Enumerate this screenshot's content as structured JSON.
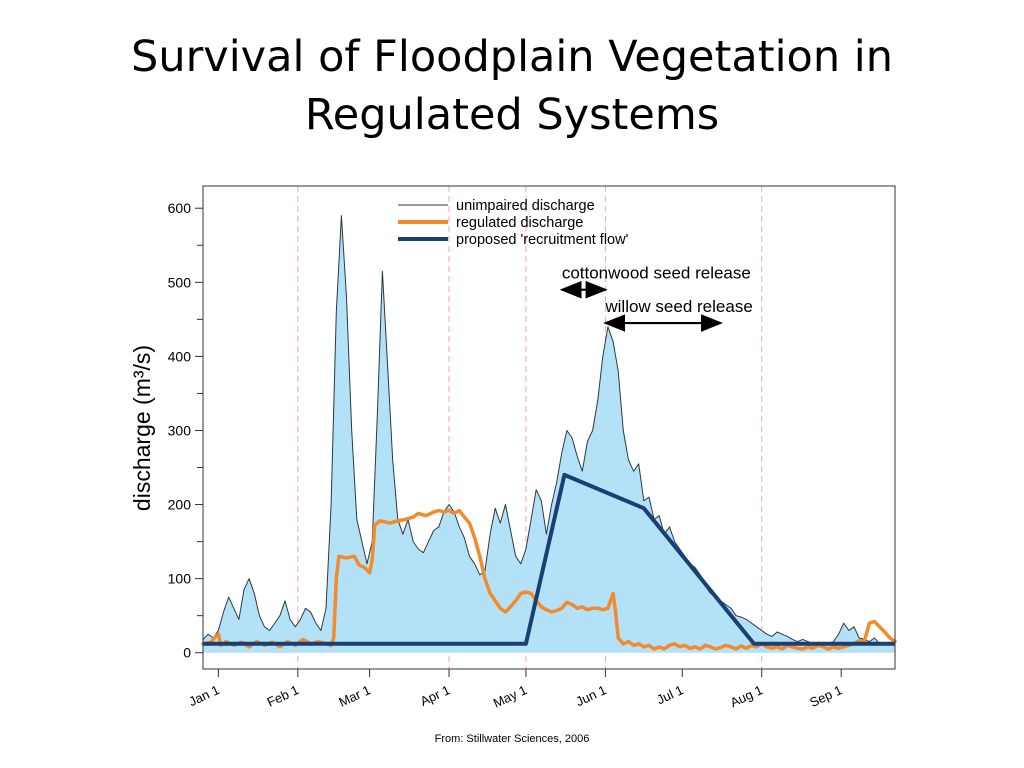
{
  "slide": {
    "title_line1": "Survival of Floodplain Vegetation in",
    "title_line2": "Regulated Systems",
    "source": "From: Stillwater Sciences, 2006"
  },
  "colors": {
    "unimpaired_fill": "#b3e1f7",
    "unimpaired_line": "#2b3a40",
    "regulated": "#f28a2e",
    "recruitment": "#1b3f73",
    "month_divider": "#f4a6b6"
  },
  "chart_data": {
    "type": "area",
    "title": "",
    "xlabel": "",
    "ylabel": "discharge (m³/s)",
    "x_unit": "day of year",
    "xlim": [
      -6,
      264
    ],
    "ylim": [
      -22,
      630
    ],
    "y_ticks": [
      0,
      100,
      200,
      300,
      400,
      500,
      600
    ],
    "y_minor_ticks": [
      50,
      150,
      250,
      350,
      450,
      550
    ],
    "month_ticks": [
      {
        "label": "Jan 1",
        "x": 0
      },
      {
        "label": "Feb 1",
        "x": 31
      },
      {
        "label": "Mar 1",
        "x": 59
      },
      {
        "label": "Apr 1",
        "x": 90
      },
      {
        "label": "May 1",
        "x": 120
      },
      {
        "label": "Jun 1",
        "x": 151
      },
      {
        "label": "Jul 1",
        "x": 181
      },
      {
        "label": "Aug 1",
        "x": 212
      },
      {
        "label": "Sep 1",
        "x": 243
      }
    ],
    "month_dividers": [
      31,
      90,
      120,
      151,
      212
    ],
    "legend": {
      "position": "top-center",
      "entries": [
        "unimpaired discharge",
        "regulated discharge",
        "proposed 'recruitment flow'"
      ]
    },
    "series": [
      {
        "name": "unimpaired discharge",
        "style": "filled-area",
        "points": [
          [
            -6,
            18
          ],
          [
            -4,
            25
          ],
          [
            -2,
            20
          ],
          [
            0,
            30
          ],
          [
            2,
            55
          ],
          [
            4,
            75
          ],
          [
            6,
            60
          ],
          [
            8,
            45
          ],
          [
            10,
            85
          ],
          [
            12,
            100
          ],
          [
            14,
            80
          ],
          [
            16,
            50
          ],
          [
            18,
            35
          ],
          [
            20,
            30
          ],
          [
            22,
            40
          ],
          [
            24,
            50
          ],
          [
            26,
            70
          ],
          [
            28,
            45
          ],
          [
            30,
            35
          ],
          [
            32,
            45
          ],
          [
            34,
            60
          ],
          [
            36,
            55
          ],
          [
            38,
            40
          ],
          [
            40,
            30
          ],
          [
            42,
            60
          ],
          [
            44,
            200
          ],
          [
            46,
            460
          ],
          [
            48,
            590
          ],
          [
            50,
            480
          ],
          [
            52,
            300
          ],
          [
            54,
            180
          ],
          [
            56,
            150
          ],
          [
            58,
            120
          ],
          [
            60,
            150
          ],
          [
            62,
            320
          ],
          [
            64,
            515
          ],
          [
            66,
            390
          ],
          [
            68,
            260
          ],
          [
            70,
            180
          ],
          [
            72,
            160
          ],
          [
            74,
            180
          ],
          [
            76,
            150
          ],
          [
            78,
            140
          ],
          [
            80,
            135
          ],
          [
            82,
            150
          ],
          [
            84,
            165
          ],
          [
            86,
            170
          ],
          [
            88,
            190
          ],
          [
            90,
            200
          ],
          [
            92,
            190
          ],
          [
            94,
            170
          ],
          [
            96,
            155
          ],
          [
            98,
            130
          ],
          [
            100,
            120
          ],
          [
            102,
            105
          ],
          [
            104,
            110
          ],
          [
            106,
            160
          ],
          [
            108,
            195
          ],
          [
            110,
            175
          ],
          [
            112,
            200
          ],
          [
            114,
            165
          ],
          [
            116,
            130
          ],
          [
            118,
            120
          ],
          [
            120,
            140
          ],
          [
            122,
            180
          ],
          [
            124,
            220
          ],
          [
            126,
            205
          ],
          [
            128,
            160
          ],
          [
            130,
            200
          ],
          [
            132,
            230
          ],
          [
            134,
            270
          ],
          [
            136,
            300
          ],
          [
            138,
            290
          ],
          [
            140,
            265
          ],
          [
            142,
            245
          ],
          [
            144,
            285
          ],
          [
            146,
            300
          ],
          [
            148,
            340
          ],
          [
            150,
            400
          ],
          [
            152,
            440
          ],
          [
            154,
            420
          ],
          [
            156,
            380
          ],
          [
            158,
            300
          ],
          [
            160,
            260
          ],
          [
            162,
            245
          ],
          [
            164,
            255
          ],
          [
            166,
            205
          ],
          [
            168,
            210
          ],
          [
            170,
            180
          ],
          [
            172,
            185
          ],
          [
            174,
            160
          ],
          [
            176,
            170
          ],
          [
            178,
            150
          ],
          [
            180,
            140
          ],
          [
            182,
            130
          ],
          [
            184,
            120
          ],
          [
            186,
            115
          ],
          [
            188,
            105
          ],
          [
            190,
            90
          ],
          [
            192,
            80
          ],
          [
            194,
            75
          ],
          [
            196,
            70
          ],
          [
            198,
            65
          ],
          [
            200,
            60
          ],
          [
            202,
            50
          ],
          [
            204,
            48
          ],
          [
            206,
            45
          ],
          [
            208,
            40
          ],
          [
            210,
            35
          ],
          [
            212,
            30
          ],
          [
            214,
            25
          ],
          [
            216,
            22
          ],
          [
            218,
            28
          ],
          [
            220,
            25
          ],
          [
            222,
            22
          ],
          [
            224,
            18
          ],
          [
            226,
            15
          ],
          [
            228,
            18
          ],
          [
            230,
            15
          ],
          [
            232,
            12
          ],
          [
            234,
            14
          ],
          [
            236,
            10
          ],
          [
            238,
            12
          ],
          [
            240,
            15
          ],
          [
            242,
            25
          ],
          [
            244,
            40
          ],
          [
            246,
            30
          ],
          [
            248,
            35
          ],
          [
            250,
            20
          ],
          [
            252,
            18
          ],
          [
            254,
            15
          ],
          [
            256,
            20
          ],
          [
            258,
            12
          ],
          [
            260,
            10
          ],
          [
            262,
            12
          ],
          [
            264,
            10
          ]
        ]
      },
      {
        "name": "regulated discharge",
        "style": "line",
        "points": [
          [
            -6,
            12
          ],
          [
            -3,
            14
          ],
          [
            -1,
            22
          ],
          [
            0,
            25
          ],
          [
            1,
            10
          ],
          [
            3,
            15
          ],
          [
            6,
            10
          ],
          [
            9,
            14
          ],
          [
            12,
            8
          ],
          [
            15,
            15
          ],
          [
            18,
            10
          ],
          [
            21,
            14
          ],
          [
            24,
            8
          ],
          [
            27,
            15
          ],
          [
            30,
            10
          ],
          [
            33,
            18
          ],
          [
            36,
            12
          ],
          [
            39,
            15
          ],
          [
            42,
            12
          ],
          [
            44,
            10
          ],
          [
            45,
            20
          ],
          [
            46,
            100
          ],
          [
            47,
            130
          ],
          [
            50,
            128
          ],
          [
            53,
            130
          ],
          [
            55,
            118
          ],
          [
            57,
            115
          ],
          [
            59,
            108
          ],
          [
            60,
            125
          ],
          [
            61,
            172
          ],
          [
            63,
            178
          ],
          [
            67,
            175
          ],
          [
            70,
            178
          ],
          [
            73,
            180
          ],
          [
            76,
            183
          ],
          [
            78,
            188
          ],
          [
            81,
            185
          ],
          [
            84,
            190
          ],
          [
            86,
            192
          ],
          [
            88,
            190
          ],
          [
            90,
            192
          ],
          [
            92,
            188
          ],
          [
            94,
            192
          ],
          [
            96,
            183
          ],
          [
            98,
            175
          ],
          [
            100,
            155
          ],
          [
            102,
            130
          ],
          [
            104,
            100
          ],
          [
            106,
            80
          ],
          [
            108,
            70
          ],
          [
            110,
            60
          ],
          [
            112,
            55
          ],
          [
            114,
            62
          ],
          [
            116,
            70
          ],
          [
            118,
            80
          ],
          [
            120,
            82
          ],
          [
            122,
            80
          ],
          [
            124,
            70
          ],
          [
            126,
            62
          ],
          [
            128,
            58
          ],
          [
            130,
            55
          ],
          [
            132,
            57
          ],
          [
            134,
            60
          ],
          [
            136,
            68
          ],
          [
            138,
            65
          ],
          [
            140,
            60
          ],
          [
            142,
            62
          ],
          [
            144,
            58
          ],
          [
            146,
            60
          ],
          [
            148,
            60
          ],
          [
            150,
            58
          ],
          [
            152,
            60
          ],
          [
            153,
            70
          ],
          [
            154,
            80
          ],
          [
            155,
            55
          ],
          [
            156,
            20
          ],
          [
            158,
            12
          ],
          [
            160,
            15
          ],
          [
            162,
            10
          ],
          [
            164,
            12
          ],
          [
            166,
            8
          ],
          [
            168,
            10
          ],
          [
            170,
            5
          ],
          [
            172,
            8
          ],
          [
            174,
            5
          ],
          [
            176,
            10
          ],
          [
            178,
            12
          ],
          [
            180,
            8
          ],
          [
            182,
            10
          ],
          [
            184,
            6
          ],
          [
            186,
            8
          ],
          [
            188,
            5
          ],
          [
            190,
            10
          ],
          [
            192,
            8
          ],
          [
            194,
            5
          ],
          [
            196,
            7
          ],
          [
            198,
            10
          ],
          [
            200,
            8
          ],
          [
            202,
            5
          ],
          [
            204,
            9
          ],
          [
            206,
            6
          ],
          [
            208,
            10
          ],
          [
            210,
            8
          ],
          [
            212,
            12
          ],
          [
            214,
            8
          ],
          [
            216,
            6
          ],
          [
            218,
            8
          ],
          [
            220,
            5
          ],
          [
            222,
            10
          ],
          [
            224,
            8
          ],
          [
            226,
            6
          ],
          [
            228,
            5
          ],
          [
            230,
            8
          ],
          [
            232,
            6
          ],
          [
            234,
            10
          ],
          [
            236,
            8
          ],
          [
            238,
            5
          ],
          [
            240,
            8
          ],
          [
            242,
            6
          ],
          [
            244,
            8
          ],
          [
            246,
            10
          ],
          [
            248,
            12
          ],
          [
            250,
            16
          ],
          [
            252,
            15
          ],
          [
            254,
            40
          ],
          [
            256,
            42
          ],
          [
            258,
            35
          ],
          [
            260,
            28
          ],
          [
            262,
            20
          ],
          [
            264,
            15
          ]
        ]
      },
      {
        "name": "proposed 'recruitment flow'",
        "style": "line",
        "points": [
          [
            -6,
            12
          ],
          [
            120,
            12
          ],
          [
            135,
            240
          ],
          [
            166,
            195
          ],
          [
            209,
            12
          ],
          [
            264,
            12
          ]
        ]
      }
    ],
    "annotations": [
      {
        "text": "cottonwood seed release",
        "x_from": 134,
        "x_to": 151,
        "y": 490
      },
      {
        "text": "willow seed release",
        "x_from": 151,
        "x_to": 196,
        "y": 445
      }
    ]
  }
}
